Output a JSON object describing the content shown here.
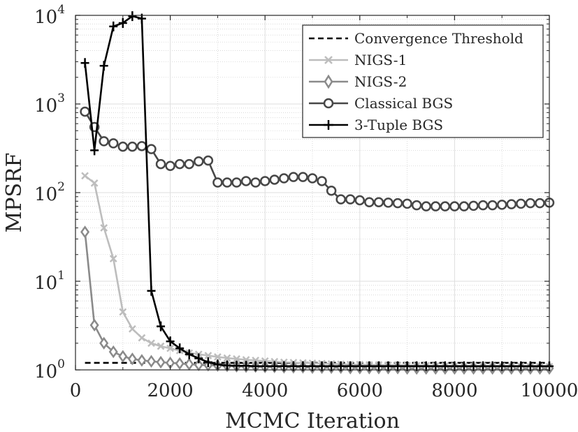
{
  "chart_data": {
    "type": "line",
    "title": "",
    "xlabel": "MCMC Iteration",
    "ylabel": "MPSRF",
    "yscale": "log",
    "xlim": [
      0,
      10000
    ],
    "ylim": [
      1.0,
      10000
    ],
    "xticks": [
      0,
      2000,
      4000,
      6000,
      8000,
      10000
    ],
    "xtick_labels": [
      "0",
      "2000",
      "4000",
      "6000",
      "8000",
      "10000"
    ],
    "yticks": [
      {
        "value": 1.0,
        "base": "10",
        "exp": "0"
      },
      {
        "value": 10,
        "base": "10",
        "exp": "1"
      },
      {
        "value": 100,
        "base": "10",
        "exp": "2"
      },
      {
        "value": 1000,
        "base": "10",
        "exp": "3"
      },
      {
        "value": 10000,
        "base": "10",
        "exp": "4"
      }
    ],
    "grid": true,
    "minor_grid": true,
    "legend_position": "top-right",
    "series": [
      {
        "name": "Convergence Threshold",
        "color": "#000000",
        "line": "dashed",
        "marker": "none",
        "x": [
          200,
          10000
        ],
        "y": [
          1.2,
          1.2
        ]
      },
      {
        "name": "NIGS-1",
        "color": "#bdbdbd",
        "line": "solid",
        "marker": "x",
        "x": [
          200,
          400,
          600,
          800,
          1000,
          1200,
          1400,
          1600,
          1800,
          2000,
          2200,
          2400,
          2600,
          2800,
          3000,
          3200,
          3400,
          3600,
          3800,
          4000,
          4200,
          4400,
          4600,
          4800,
          5000,
          5200,
          5400,
          5600,
          5800,
          6000,
          6200,
          6400,
          6600,
          6800,
          7000,
          7200,
          7400,
          7600,
          7800,
          8000,
          8200,
          8400,
          8600,
          8800,
          9000,
          9200,
          9400,
          9600,
          9800,
          10000
        ],
        "y": [
          155,
          128,
          40,
          18,
          4.5,
          2.9,
          2.3,
          2.0,
          1.85,
          1.75,
          1.65,
          1.55,
          1.5,
          1.45,
          1.4,
          1.36,
          1.33,
          1.3,
          1.28,
          1.26,
          1.24,
          1.22,
          1.21,
          1.2,
          1.19,
          1.18,
          1.17,
          1.16,
          1.15,
          1.15,
          1.14,
          1.14,
          1.13,
          1.13,
          1.12,
          1.12,
          1.12,
          1.11,
          1.11,
          1.11,
          1.1,
          1.1,
          1.1,
          1.1,
          1.1,
          1.1,
          1.1,
          1.09,
          1.09,
          1.09
        ]
      },
      {
        "name": "NIGS-2",
        "color": "#8a8a8a",
        "line": "solid",
        "marker": "diamond",
        "x": [
          200,
          400,
          600,
          800,
          1000,
          1200,
          1400,
          1600,
          1800,
          2000,
          2200,
          2400,
          2600,
          2800,
          3000,
          3200,
          3400,
          3600,
          3800,
          4000,
          4200,
          4400,
          4600,
          4800,
          5000,
          5200,
          5400,
          5600,
          5800,
          6000,
          6200,
          6400,
          6600,
          6800,
          7000,
          7200,
          7400,
          7600,
          7800,
          8000,
          8200,
          8400,
          8600,
          8800,
          9000,
          9200,
          9400,
          9600,
          9800,
          10000
        ],
        "y": [
          36,
          3.2,
          2.0,
          1.6,
          1.42,
          1.33,
          1.28,
          1.25,
          1.22,
          1.2,
          1.18,
          1.16,
          1.14,
          1.13,
          1.12,
          1.11,
          1.1,
          1.09,
          1.09,
          1.08,
          1.08,
          1.07,
          1.07,
          1.07,
          1.06,
          1.06,
          1.06,
          1.06,
          1.05,
          1.05,
          1.05,
          1.05,
          1.05,
          1.05,
          1.04,
          1.04,
          1.04,
          1.04,
          1.04,
          1.04,
          1.04,
          1.04,
          1.04,
          1.04,
          1.04,
          1.04,
          1.04,
          1.04,
          1.04,
          1.04
        ]
      },
      {
        "name": "Classical BGS",
        "color": "#474747",
        "line": "solid",
        "marker": "circle",
        "x": [
          200,
          400,
          600,
          800,
          1000,
          1200,
          1400,
          1600,
          1800,
          2000,
          2200,
          2400,
          2600,
          2800,
          3000,
          3200,
          3400,
          3600,
          3800,
          4000,
          4200,
          4400,
          4600,
          4800,
          5000,
          5200,
          5400,
          5600,
          5800,
          6000,
          6200,
          6400,
          6600,
          6800,
          7000,
          7200,
          7400,
          7600,
          7800,
          8000,
          8200,
          8400,
          8600,
          8800,
          9000,
          9200,
          9400,
          9600,
          9800,
          10000
        ],
        "y": [
          820,
          550,
          380,
          360,
          330,
          330,
          335,
          310,
          210,
          200,
          210,
          210,
          225,
          230,
          130,
          130,
          130,
          135,
          130,
          135,
          140,
          145,
          150,
          150,
          145,
          135,
          105,
          84,
          84,
          82,
          78,
          78,
          77,
          76,
          75,
          72,
          70,
          70,
          70,
          70,
          70,
          71,
          72,
          72,
          73,
          74,
          75,
          76,
          76,
          77
        ]
      },
      {
        "name": "3-Tuple BGS",
        "color": "#000000",
        "line": "solid",
        "marker": "plus",
        "x": [
          200,
          400,
          600,
          800,
          1000,
          1200,
          1400,
          1600,
          1800,
          2000,
          2200,
          2400,
          2600,
          2800,
          3000,
          3200,
          3400,
          3600,
          3800,
          4000,
          4200,
          4400,
          4600,
          4800,
          5000,
          5200,
          5400,
          5600,
          5800,
          6000,
          6200,
          6400,
          6600,
          6800,
          7000,
          7200,
          7400,
          7600,
          7800,
          8000,
          8200,
          8400,
          8600,
          8800,
          9000,
          9200,
          9400,
          9600,
          9800,
          10000
        ],
        "y": [
          2900,
          300,
          2700,
          7500,
          8200,
          9800,
          9200,
          7.8,
          3.1,
          2.1,
          1.75,
          1.5,
          1.35,
          1.22,
          1.15,
          1.12,
          1.11,
          1.11,
          1.1,
          1.1,
          1.1,
          1.1,
          1.1,
          1.1,
          1.1,
          1.1,
          1.1,
          1.1,
          1.1,
          1.1,
          1.1,
          1.1,
          1.1,
          1.1,
          1.1,
          1.1,
          1.1,
          1.1,
          1.1,
          1.1,
          1.1,
          1.1,
          1.1,
          1.1,
          1.1,
          1.1,
          1.1,
          1.1,
          1.1,
          1.1
        ]
      }
    ]
  }
}
